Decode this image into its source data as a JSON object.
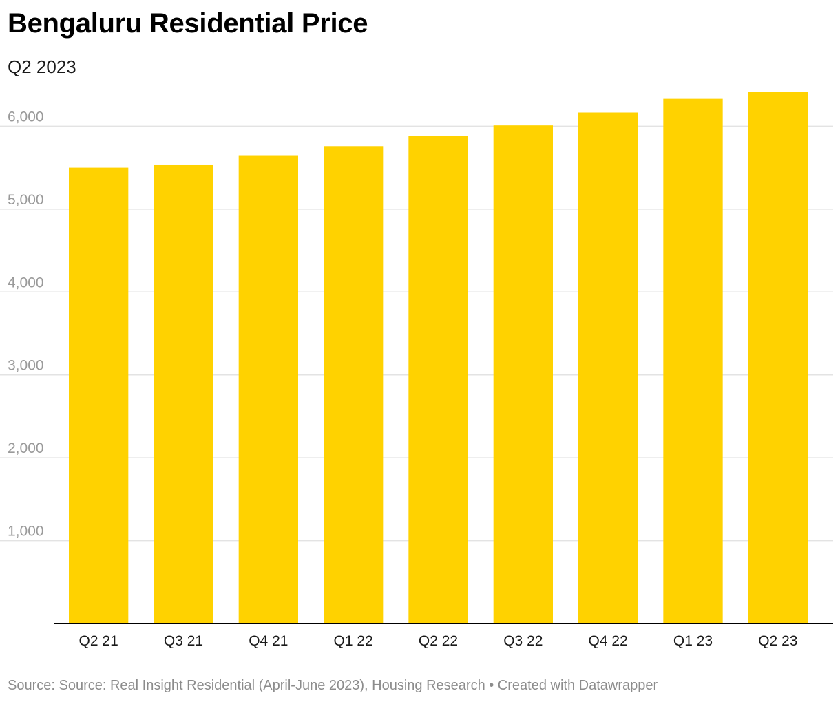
{
  "header": {
    "title": "Bengaluru Residential Price",
    "subtitle": "Q2 2023"
  },
  "footer": {
    "source": "Source: Source: Real Insight Residential (April-June 2023), Housing Research • Created with Datawrapper"
  },
  "colors": {
    "bar": "#FFD200",
    "grid": "#e3e3e3",
    "baseline": "#000000"
  },
  "chart_data": {
    "type": "bar",
    "title": "Bengaluru Residential Price",
    "subtitle": "Q2 2023",
    "xlabel": "",
    "ylabel": "",
    "categories": [
      "Q2 21",
      "Q3 21",
      "Q4 21",
      "Q1 22",
      "Q2 22",
      "Q3 22",
      "Q4 22",
      "Q1 23",
      "Q2 23"
    ],
    "values": [
      5500,
      5530,
      5650,
      5760,
      5880,
      6010,
      6165,
      6330,
      6410
    ],
    "ylim": [
      0,
      6410
    ],
    "yticks": [
      1000,
      2000,
      3000,
      4000,
      5000,
      6000
    ],
    "ytick_labels": [
      "1,000",
      "2,000",
      "3,000",
      "4,000",
      "5,000",
      "6,000"
    ],
    "grid": true,
    "legend": "none"
  }
}
